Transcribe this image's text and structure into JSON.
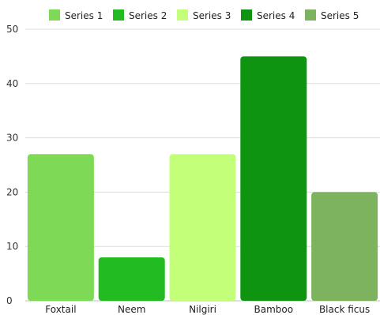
{
  "chart_data": {
    "type": "bar",
    "categories": [
      "Foxtail",
      "Neem",
      "Nilgiri",
      "Bamboo",
      "Black ficus"
    ],
    "series": [
      {
        "name": "Series 1",
        "values": [
          27,
          null,
          null,
          null,
          null
        ],
        "color": "#7ed957"
      },
      {
        "name": "Series 2",
        "values": [
          null,
          8,
          null,
          null,
          null
        ],
        "color": "#22bb22"
      },
      {
        "name": "Series 3",
        "values": [
          null,
          null,
          27,
          null,
          null
        ],
        "color": "#c4ff79"
      },
      {
        "name": "Series 4",
        "values": [
          null,
          null,
          null,
          45,
          null
        ],
        "color": "#0f9411"
      },
      {
        "name": "Series 5",
        "values": [
          null,
          null,
          null,
          null,
          20
        ],
        "color": "#7db35f"
      }
    ],
    "ylim": [
      0,
      50
    ],
    "yticks": [
      0,
      10,
      20,
      30,
      40,
      50
    ],
    "grid": true,
    "legend_position": "top-center"
  }
}
